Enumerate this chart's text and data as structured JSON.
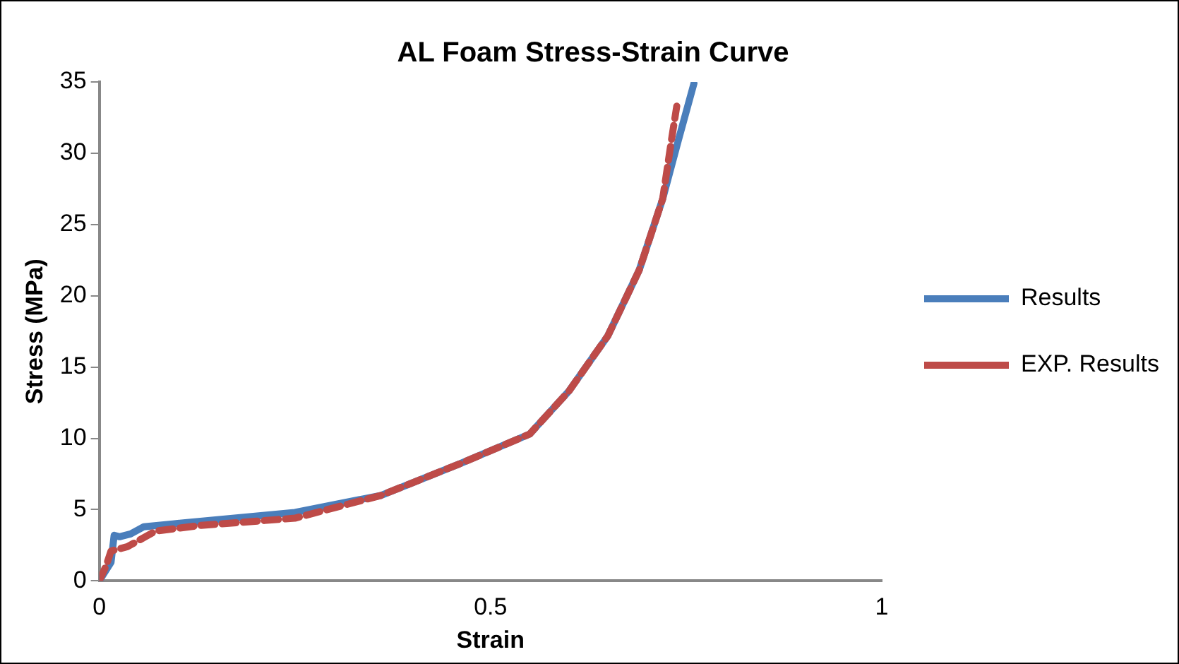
{
  "chart_data": {
    "type": "line",
    "title": "AL Foam Stress-Strain Curve",
    "xlabel": "Strain",
    "ylabel": "Stress (MPa)",
    "xlim": [
      0,
      1
    ],
    "xticks": [
      0,
      0.5,
      1
    ],
    "ylim": [
      0,
      35
    ],
    "yticks": [
      0,
      5,
      10,
      15,
      20,
      25,
      30,
      35
    ],
    "grid": false,
    "legend": "right",
    "marker": "none",
    "series": [
      {
        "name": "Results",
        "color": "#4a7ebb",
        "line_style": "solid",
        "x": [
          0,
          0.015,
          0.019,
          0.026,
          0.04,
          0.057,
          0.094,
          0.25,
          0.36,
          0.46,
          0.55,
          0.6,
          0.65,
          0.69,
          0.72,
          0.74,
          0.76
        ],
        "values": [
          0,
          1.3,
          3.2,
          3.1,
          3.3,
          3.8,
          4.0,
          4.8,
          6.0,
          8.2,
          10.3,
          13.3,
          17.2,
          21.8,
          26.8,
          30.9,
          34.9
        ]
      },
      {
        "name": "EXP. Results",
        "color": "#be4b48",
        "line_style": "dashed",
        "x": [
          0,
          0.009,
          0.015,
          0.036,
          0.072,
          0.13,
          0.25,
          0.36,
          0.46,
          0.55,
          0.6,
          0.65,
          0.69,
          0.72,
          0.732,
          0.738
        ],
        "values": [
          0,
          1.1,
          2.1,
          2.4,
          3.5,
          3.9,
          4.4,
          6.0,
          8.2,
          10.3,
          13.3,
          17.2,
          21.8,
          26.8,
          31.2,
          33.3
        ]
      }
    ]
  }
}
